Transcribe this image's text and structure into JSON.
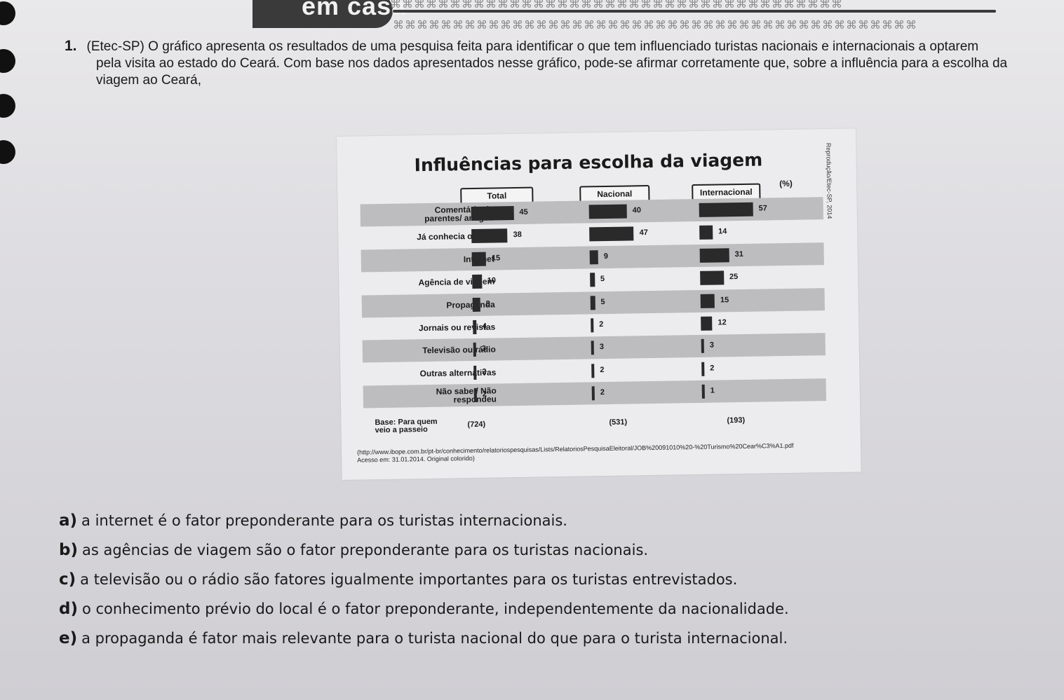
{
  "header": {
    "title": "em casa"
  },
  "question": {
    "number": "1.",
    "line1": "(Etec-SP) O gráfico apresenta os resultados de uma pesquisa feita para identificar o que tem influenciado turistas nacionais e internacionais a optarem",
    "line2": "pela visita ao estado do Ceará. Com base nos dados apresentados nesse gráfico, pode-se afirmar corretamente que, sobre a influência para a escolha da",
    "line3": "viagem ao Ceará,"
  },
  "chart_data": {
    "type": "bar",
    "title": "Influências para escolha da viagem",
    "unit": "(%)",
    "credit": "Reprodução/Etec-SP, 2014",
    "categories": [
      "Comentário de\nparentes/ amigos",
      "Já conhecia o local",
      "Internet",
      "Agência de viagem",
      "Propaganda",
      "Jornais ou revistas",
      "Televisão ou rádio",
      "Outras alternativas",
      "Não sabe / Não\nrespondeu"
    ],
    "series": [
      {
        "name": "Total",
        "values": [
          45,
          38,
          15,
          10,
          8,
          4,
          3,
          2,
          2
        ]
      },
      {
        "name": "Nacional",
        "values": [
          40,
          47,
          9,
          5,
          5,
          2,
          3,
          2,
          2
        ]
      },
      {
        "name": "Internacional",
        "values": [
          57,
          14,
          31,
          25,
          15,
          12,
          3,
          2,
          1
        ]
      }
    ],
    "base_label": "Base: Para quem\nveio a passeio",
    "base_values": [
      "(724)",
      "(531)",
      "(193)"
    ],
    "source_line1": "(http://www.ibope.com.br/pt-br/conhecimento/relatoriospesquisas/Lists/RelatoriosPesquisaEleitoral/JOB%20091010%20-%20Turismo%20Cear%C3%A1.pdf",
    "source_line2": "Acesso em: 31.01.2014. Original colorido)"
  },
  "options": [
    {
      "letter": "a)",
      "text": "a internet é o fator preponderante para os turistas internacionais."
    },
    {
      "letter": "b)",
      "text": "as agências de viagem são o fator preponderante para os turistas nacionais."
    },
    {
      "letter": "c)",
      "text": "a televisão ou o rádio são fatores igualmente importantes para os turistas entrevistados."
    },
    {
      "letter": "d)",
      "text": "o conhecimento prévio do local é o fator preponderante, independentemente da nacionalidade."
    },
    {
      "letter": "e)",
      "text": "a propaganda é fator mais relevante para o turista nacional do que para o turista internacional."
    }
  ]
}
